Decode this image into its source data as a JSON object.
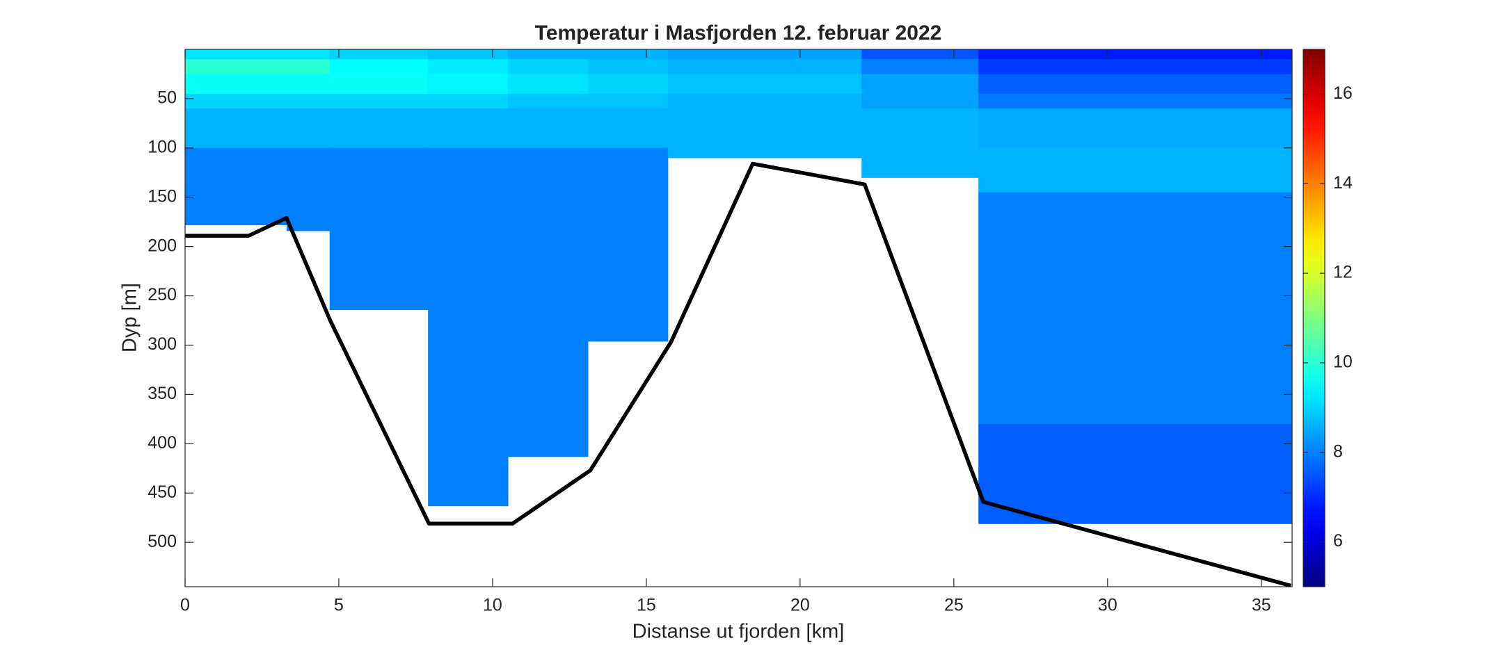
{
  "chart_data": {
    "type": "contour",
    "title": "Temperatur i Masfjorden 12. februar 2022",
    "xlabel": "Distanse ut fjorden [km]",
    "ylabel": "Dyp [m]",
    "xlim": [
      0,
      36
    ],
    "xticks": [
      0,
      5,
      10,
      15,
      20,
      25,
      30,
      35
    ],
    "ylim": [
      0,
      545
    ],
    "yticks": [
      50,
      100,
      150,
      200,
      250,
      300,
      350,
      400,
      450,
      500
    ],
    "y_reversed": true,
    "colormap": "jet",
    "clim": [
      5,
      17
    ],
    "cticks": [
      6,
      8,
      10,
      12,
      14,
      16
    ],
    "x_edges": [
      0,
      3.3,
      4.7,
      7.9,
      10.5,
      13.1,
      15.7,
      22,
      25.8,
      36
    ],
    "depth_edges": [
      0,
      10,
      25,
      45,
      60,
      100,
      145,
      380,
      481
    ],
    "data_bottom": [
      178,
      184,
      264,
      463,
      413,
      296,
      110,
      130,
      481
    ],
    "temperature": [
      [
        9.2,
        9.2,
        9.0,
        8.8,
        8.6,
        8.6,
        8.4,
        7.5,
        6.8
      ],
      [
        10.0,
        10.0,
        9.5,
        9.3,
        9.0,
        8.8,
        8.6,
        8.0,
        7.2
      ],
      [
        9.6,
        9.6,
        9.6,
        9.4,
        9.2,
        9.0,
        8.8,
        8.4,
        7.6
      ],
      [
        9.0,
        9.0,
        9.0,
        9.0,
        8.8,
        8.8,
        8.6,
        8.4,
        7.9
      ],
      [
        8.6,
        8.6,
        8.6,
        8.6,
        8.6,
        8.6,
        8.6,
        8.6,
        8.5
      ],
      [
        8.0,
        8.0,
        8.0,
        8.0,
        8.0,
        8.0,
        8.6,
        8.6,
        8.6
      ],
      [
        8.0,
        8.0,
        8.0,
        8.0,
        8.0,
        8.0,
        null,
        null,
        8.0
      ],
      [
        null,
        null,
        null,
        8.0,
        8.0,
        null,
        null,
        null,
        7.6
      ]
    ],
    "bottom_profile": {
      "color": "#000000",
      "x": [
        0,
        2.07,
        3.3,
        4.72,
        7.93,
        10.65,
        13.18,
        15.8,
        18.46,
        22.1,
        25.96,
        35.96
      ],
      "depth": [
        189,
        189,
        171,
        275,
        481,
        481,
        427,
        297,
        116,
        137,
        459,
        544
      ]
    }
  }
}
